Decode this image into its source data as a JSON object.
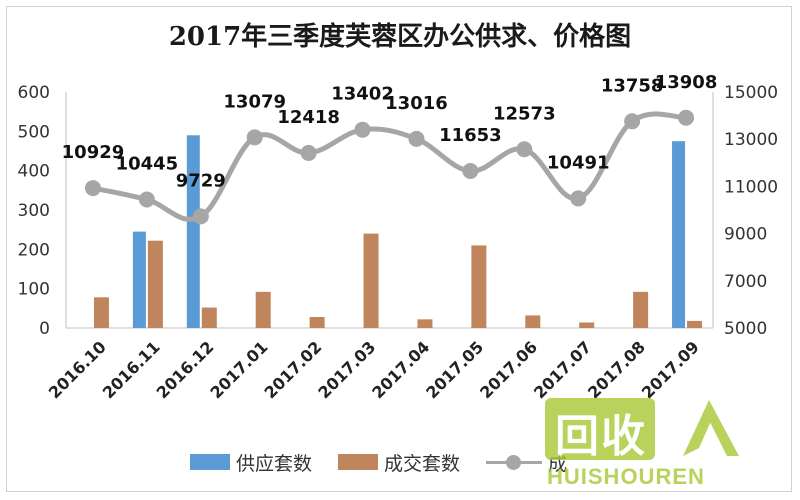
{
  "chart_data": {
    "type": "bar",
    "title": "2017年三季度芙蓉区办公供求、价格图",
    "categories": [
      "2016.10",
      "2016.11",
      "2016.12",
      "2017.01",
      "2017.02",
      "2017.03",
      "2017.04",
      "2017.05",
      "2017.06",
      "2017.07",
      "2017.08",
      "2017.09"
    ],
    "series": [
      {
        "name": "供应套数",
        "type": "bar",
        "axis": "left",
        "color": "#5b9bd5",
        "values": [
          0,
          245,
          490,
          0,
          0,
          0,
          0,
          0,
          0,
          0,
          0,
          475
        ]
      },
      {
        "name": "成交套数",
        "type": "bar",
        "axis": "left",
        "color": "#c0855c",
        "values": [
          78,
          222,
          52,
          92,
          28,
          240,
          22,
          210,
          32,
          14,
          92,
          18
        ]
      },
      {
        "name": "成",
        "type": "line",
        "axis": "right",
        "color": "#a6a6a6",
        "values": [
          10929,
          10445,
          9729,
          13079,
          12418,
          13402,
          13016,
          11653,
          12573,
          10491,
          13758,
          13908
        ]
      }
    ],
    "y_left": {
      "min": 0,
      "max": 600,
      "ticks": [
        0,
        100,
        200,
        300,
        400,
        500,
        600
      ]
    },
    "y_right": {
      "min": 5000,
      "max": 15000,
      "ticks": [
        5000,
        7000,
        9000,
        11000,
        13000,
        15000
      ]
    },
    "grid": false,
    "legend_position": "bottom"
  },
  "watermark": {
    "cn": "回收",
    "en": "HUISHOUREN"
  }
}
